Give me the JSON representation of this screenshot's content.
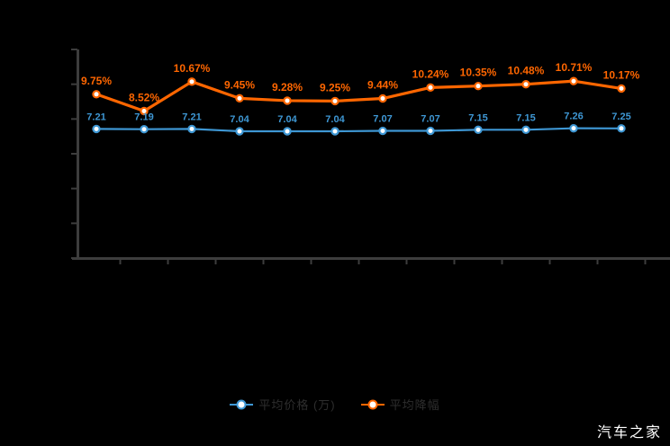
{
  "colors": {
    "background": "#000000",
    "axis": "#3d3d3d",
    "blue_series": "#3e97d4",
    "orange_series": "#ff6600",
    "legend_text": "#2e2e2e",
    "watermark_text": "#ffffff"
  },
  "legend": {
    "items": [
      {
        "label": "平均价格 (万)",
        "color": "#3e97d4",
        "marker": "line-circle-marker-icon"
      },
      {
        "label": "平均降幅",
        "color": "#ff6600",
        "marker": "line-circle-marker-icon"
      }
    ]
  },
  "watermark": {
    "text": "汽车之家"
  },
  "chart_data": {
    "type": "line",
    "title": "",
    "xlabel": "",
    "ylabel": "",
    "x_tick_labels_visible": false,
    "y_tick_labels_visible": false,
    "grid": false,
    "legend_position": "bottom-center",
    "point_count": 12,
    "series": [
      {
        "name": "平均价格 (万)",
        "color": "#3e97d4",
        "values": [
          7.21,
          7.19,
          7.21,
          7.04,
          7.04,
          7.04,
          7.07,
          7.07,
          7.15,
          7.15,
          7.26,
          7.25
        ],
        "point_labels": [
          "7.21",
          "7.19",
          "7.21",
          "7.04",
          "7.04",
          "7.04",
          "7.07",
          "7.07",
          "7.15",
          "7.15",
          "7.26",
          "7.25"
        ]
      },
      {
        "name": "平均降幅",
        "color": "#ff6600",
        "values": [
          9.75,
          8.52,
          10.67,
          9.45,
          9.28,
          9.25,
          9.44,
          10.24,
          10.35,
          10.48,
          10.71,
          10.17
        ],
        "point_labels": [
          "9.75%",
          "8.52%",
          "10.67%",
          "9.45%",
          "9.28%",
          "9.25%",
          "9.44%",
          "10.24%",
          "10.35%",
          "10.48%",
          "10.71%",
          "10.17%"
        ]
      }
    ]
  }
}
